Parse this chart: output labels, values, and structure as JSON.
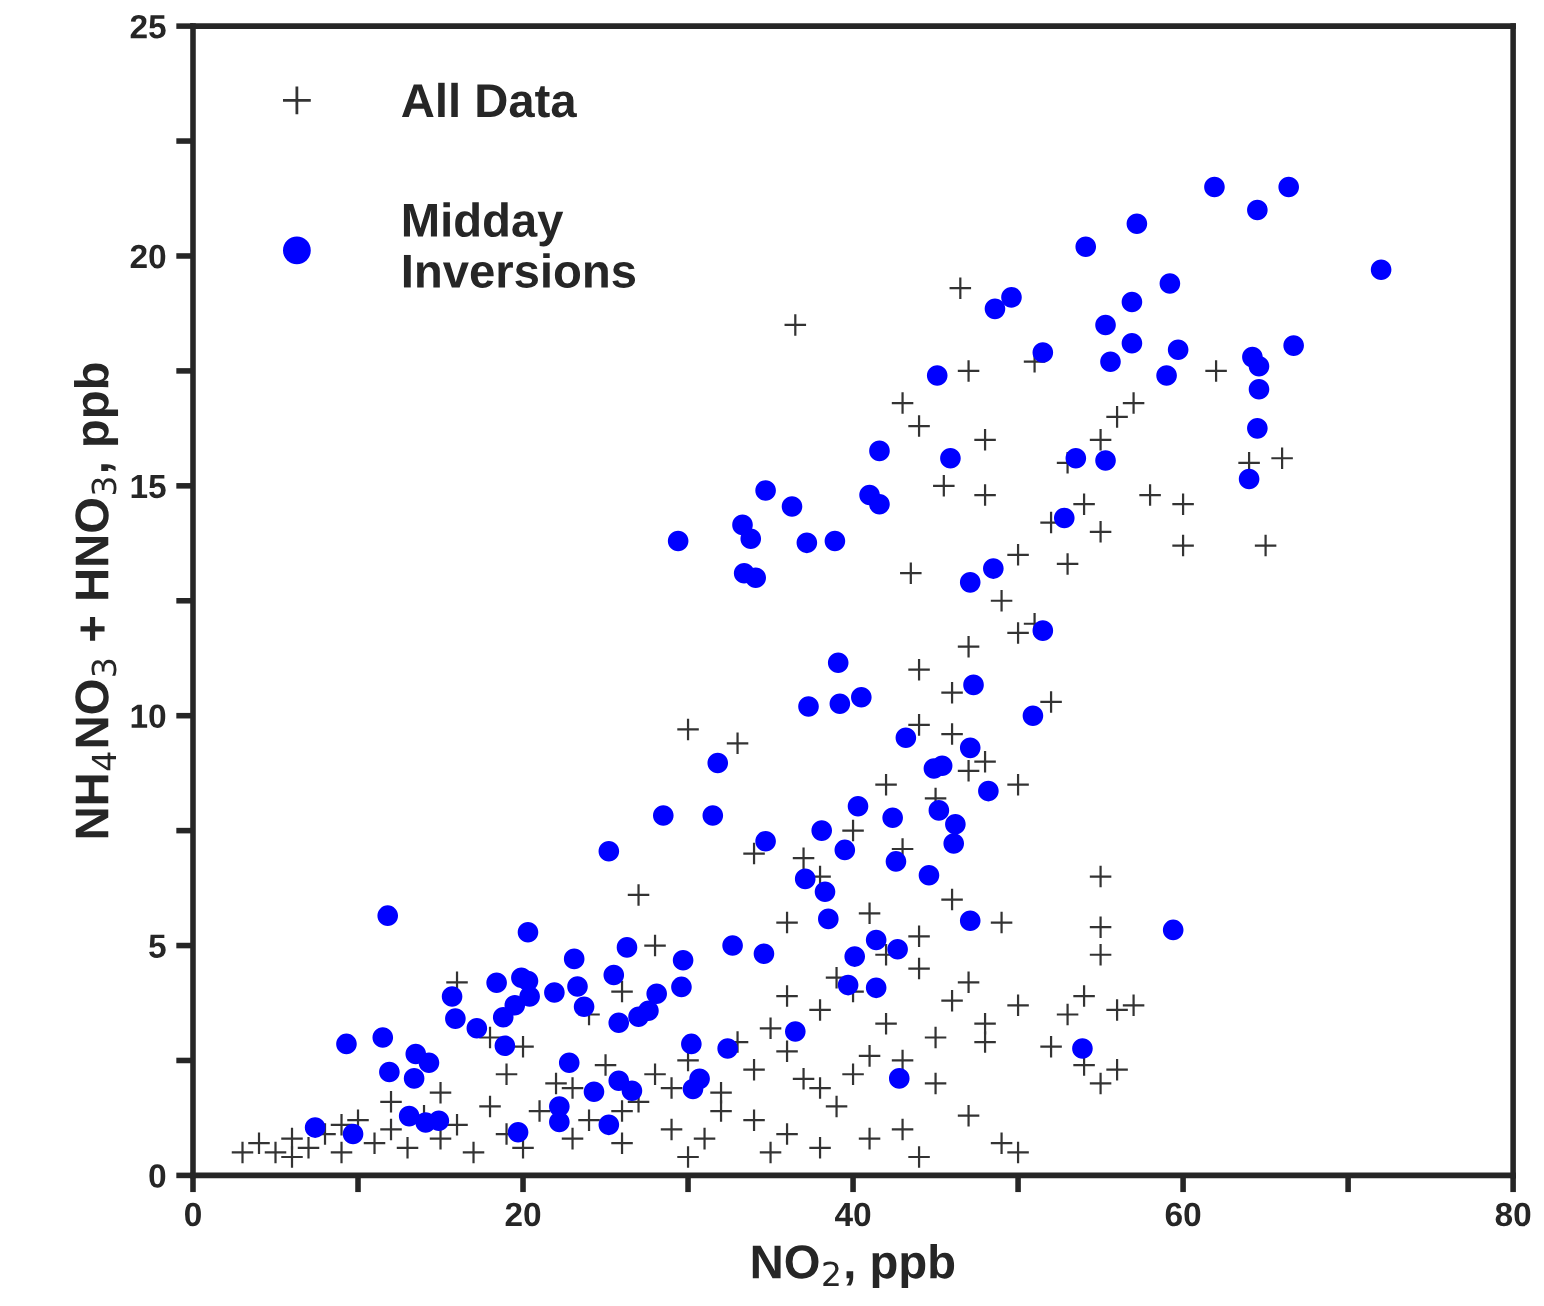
{
  "chart_data": {
    "type": "scatter",
    "xlabel": "NO$_{2}$, ppb",
    "ylabel": "NH$_{4}$NO$_{3}$ + HNO$_{3}$, ppb",
    "xlim": [
      0,
      80
    ],
    "ylim": [
      0,
      25
    ],
    "xticks": [
      0,
      {
        "value": 10,
        "label": null
      },
      20,
      {
        "value": 30,
        "label": null
      },
      40,
      {
        "value": 50,
        "label": null
      },
      60,
      {
        "value": 70,
        "label": null
      },
      80
    ],
    "yticks": [
      0,
      {
        "value": 2.5,
        "label": null
      },
      5,
      {
        "value": 7.5,
        "label": null
      },
      10,
      {
        "value": 12.5,
        "label": null
      },
      15,
      {
        "value": 17.5,
        "label": null
      },
      20,
      {
        "value": 22.5,
        "label": null
      },
      25
    ],
    "grid": false,
    "legend": "top left",
    "series": [
      {
        "name": "All Data",
        "color": "#333333",
        "marker": "cross",
        "x": [
          3,
          4,
          5,
          6,
          7,
          8,
          9,
          10,
          11,
          12,
          13,
          14,
          15,
          16,
          17,
          18,
          19,
          20,
          21,
          22,
          23,
          24,
          25,
          26,
          27,
          28,
          29,
          30,
          31,
          32,
          33,
          34,
          35,
          36,
          37,
          38,
          39,
          40,
          41,
          42,
          43,
          44,
          45,
          46,
          47,
          48,
          49,
          50,
          41,
          38,
          44,
          35,
          30,
          16,
          18,
          20,
          24,
          26,
          27,
          30,
          33,
          28,
          34,
          36,
          38,
          40,
          42,
          44,
          46,
          47,
          48,
          49,
          50,
          51,
          52,
          53,
          54,
          55,
          56,
          57,
          58,
          60,
          60,
          62,
          64,
          65,
          66,
          36.5,
          43,
          44,
          46.5,
          47,
          48,
          51,
          53,
          55,
          43.5,
          45.5,
          48,
          50,
          52,
          55,
          55,
          55,
          54,
          56,
          57,
          53,
          55,
          56,
          52,
          54,
          50,
          49,
          46,
          44,
          42,
          47,
          48,
          45,
          43,
          40,
          38,
          36,
          34,
          32,
          29,
          26,
          23,
          19,
          15,
          12,
          9,
          6,
          36,
          39,
          41,
          37,
          43,
          45,
          47,
          50,
          46,
          44
        ],
        "values": [
          0.5,
          0.7,
          0.5,
          0.8,
          0.6,
          0.9,
          0.5,
          1.2,
          0.7,
          1.0,
          0.6,
          1.3,
          0.8,
          1.1,
          0.5,
          1.5,
          0.9,
          0.6,
          1.4,
          2.0,
          0.8,
          1.2,
          2.4,
          0.7,
          1.6,
          2.2,
          1.0,
          2.5,
          0.8,
          1.8,
          2.9,
          1.2,
          3.2,
          0.9,
          2.1,
          3.6,
          1.5,
          4.0,
          2.6,
          3.3,
          1.0,
          4.5,
          2.0,
          3.8,
          1.3,
          2.9,
          0.7,
          0.5,
          0.8,
          0.6,
          0.4,
          0.5,
          0.4,
          4.2,
          3.0,
          2.8,
          3.5,
          4.0,
          6.1,
          9.7,
          9.4,
          5.0,
          7.0,
          5.5,
          6.5,
          7.5,
          8.5,
          9.8,
          10.5,
          11.5,
          9.0,
          12.5,
          13.5,
          12.0,
          14.2,
          13.3,
          14.6,
          14.0,
          16.5,
          16.8,
          14.8,
          14.6,
          13.7,
          17.5,
          15.5,
          13.7,
          15.6,
          18.5,
          16.8,
          16.3,
          19.3,
          17.5,
          16.0,
          17.7,
          15.5,
          16.0,
          13.1,
          15.0,
          14.8,
          11.8,
          10.3,
          6.5,
          5.4,
          4.8,
          3.9,
          3.6,
          3.7,
          3.5,
          2.0,
          2.3,
          2.8,
          2.4,
          3.7,
          5.5,
          6.0,
          5.2,
          4.8,
          4.2,
          3.3,
          3.0,
          2.5,
          2.2,
          1.9,
          2.7,
          2.3,
          1.4,
          1.9,
          1.4,
          1.9,
          2.2,
          1.8,
          1.6,
          1.1,
          0.4,
          3.9,
          4.3,
          5.7,
          6.9,
          7.1,
          8.2,
          8.8,
          8.5,
          9.6,
          11.0
        ]
      },
      {
        "name": "Midday\nInversions",
        "color": "#0000ff",
        "marker": "circle",
        "x": [
          29.4,
          34.7,
          36.3,
          33.3,
          33.8,
          37.2,
          38.9,
          33.4,
          34.1,
          39.1,
          61.9,
          66.4,
          64.5,
          72.0,
          57.2,
          54.1,
          59.2,
          49.6,
          48.6,
          56.9,
          55.3,
          56.9,
          55.6,
          59.7,
          59.0,
          51.5,
          45.1,
          64.2,
          64.6,
          66.7,
          64.6,
          64.5,
          64.0,
          41.6,
          45.9,
          53.5,
          55.3,
          41.0,
          41.6,
          52.8,
          48.5,
          47.1,
          51.5,
          47.3,
          37.3,
          39.2,
          40.5,
          31.8,
          28.5,
          31.5,
          25.2,
          34.7,
          38.1,
          39.5,
          37.1,
          38.3,
          38.5,
          11.8,
          20.3,
          23.1,
          26.3,
          32.7,
          34.6,
          29.7,
          40.1,
          39.7,
          25.5,
          29.6,
          28.1,
          27.6,
          27.0,
          25.8,
          23.3,
          23.7,
          21.9,
          20.3,
          19.9,
          20.4,
          19.5,
          18.8,
          18.4,
          15.7,
          15.9,
          17.2,
          18.9,
          9.3,
          11.5,
          11.9,
          13.5,
          14.3,
          13.4,
          22.8,
          24.3,
          25.8,
          26.6,
          30.2,
          32.4,
          36.5,
          30.3,
          30.7,
          13.1,
          14.1,
          14.9,
          22.2,
          22.2,
          25.2,
          7.4,
          9.7,
          19.7,
          50.9,
          43.2,
          47.1,
          44.9,
          45.4,
          48.2,
          40.3,
          42.4,
          45.2,
          46.2,
          46.1,
          42.6,
          44.6,
          47.1,
          59.4,
          41.4,
          42.7,
          41.4,
          53.9,
          42.8
        ],
        "values": [
          13.8,
          14.9,
          14.55,
          14.15,
          13.85,
          13.76,
          13.8,
          13.1,
          13.0,
          11.15,
          21.5,
          21.5,
          21.0,
          19.7,
          20.7,
          20.2,
          19.4,
          19.1,
          18.85,
          19.0,
          18.5,
          18.1,
          17.7,
          17.96,
          17.4,
          17.9,
          17.4,
          17.8,
          17.6,
          18.05,
          17.1,
          16.25,
          15.15,
          15.76,
          15.6,
          15.6,
          15.55,
          14.8,
          14.6,
          14.3,
          13.2,
          12.9,
          11.85,
          10.67,
          10.2,
          10.26,
          10.4,
          8.97,
          7.83,
          7.83,
          7.05,
          7.27,
          7.5,
          7.08,
          6.45,
          6.17,
          5.58,
          5.65,
          5.29,
          4.71,
          4.96,
          5.0,
          4.82,
          4.68,
          4.76,
          4.14,
          4.36,
          4.1,
          3.95,
          3.58,
          3.45,
          3.32,
          4.11,
          3.67,
          3.98,
          4.23,
          4.3,
          3.89,
          3.7,
          3.44,
          4.19,
          3.89,
          3.41,
          3.2,
          2.82,
          2.86,
          3.0,
          2.25,
          2.64,
          2.45,
          2.11,
          2.45,
          1.82,
          2.06,
          1.84,
          2.86,
          2.76,
          3.13,
          1.88,
          2.1,
          1.29,
          1.15,
          1.19,
          1.5,
          1.16,
          1.1,
          1.04,
          0.9,
          0.94,
          10.0,
          9.52,
          9.3,
          8.85,
          8.91,
          8.36,
          8.03,
          7.78,
          7.94,
          7.64,
          7.22,
          6.83,
          6.53,
          5.54,
          5.34,
          5.12,
          4.92,
          4.08,
          2.76,
          2.11
        ]
      }
    ]
  }
}
